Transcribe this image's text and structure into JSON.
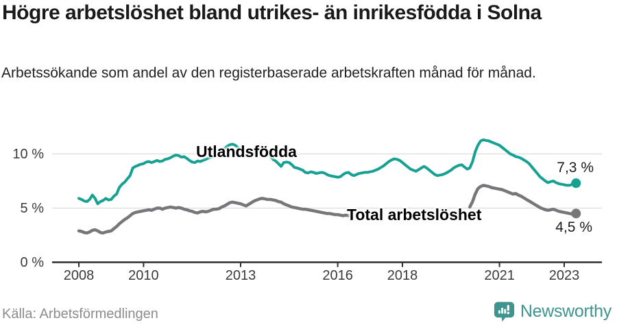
{
  "header": {
    "title": "Högre arbetslöshet bland utrikes- än inrikesfödda i Solna",
    "subtitle": "Arbetssökande som andel av den registerbaserade arbetskraften månad för månad."
  },
  "footer": {
    "source": "Källa: Arbetsförmedlingen",
    "brand": "Newsworthy"
  },
  "colors": {
    "accent_teal": "#16A193",
    "line_gray": "#76767B",
    "axis": "#2D2D2D",
    "grid": "#DCDCDC",
    "text_dark": "#1A1A1A",
    "muted_gray": "#8C8C8C",
    "brand_teal": "#3F948E"
  },
  "chart_data": {
    "type": "line",
    "x_start": "2008-01",
    "frequency": "monthly",
    "y_unit": "percent",
    "ylim": [
      0,
      12
    ],
    "grid": "horizontal",
    "legend_position": "inline-line-labels",
    "yticks": [
      {
        "value": 10,
        "label": "10 %"
      },
      {
        "value": 5,
        "label": "5 %"
      },
      {
        "value": 0,
        "label": "0 %"
      }
    ],
    "xticks": [
      {
        "year": 2008,
        "label": "2008"
      },
      {
        "year": 2010,
        "label": "2010"
      },
      {
        "year": 2013,
        "label": "2013"
      },
      {
        "year": 2016,
        "label": "2016"
      },
      {
        "year": 2018,
        "label": "2018"
      },
      {
        "year": 2021,
        "label": "2021"
      },
      {
        "year": 2023,
        "label": "2023"
      }
    ],
    "series": [
      {
        "name": "Utlandsfödda",
        "color": "#16A193",
        "end_label": "7,3 %",
        "last_value": 7.3,
        "values": [
          5.9,
          5.8,
          5.65,
          5.6,
          5.8,
          6.2,
          5.9,
          5.4,
          5.6,
          5.7,
          5.9,
          5.75,
          5.8,
          6.1,
          6.3,
          6.9,
          7.2,
          7.4,
          7.7,
          8.0,
          8.7,
          8.85,
          8.95,
          9.05,
          9.1,
          9.25,
          9.3,
          9.2,
          9.3,
          9.4,
          9.3,
          9.35,
          9.5,
          9.55,
          9.65,
          9.8,
          9.9,
          9.85,
          9.7,
          9.75,
          9.6,
          9.4,
          9.25,
          9.2,
          9.35,
          9.3,
          9.4,
          9.5,
          9.6,
          9.7,
          9.8,
          9.95,
          10.1,
          10.3,
          10.5,
          10.7,
          10.85,
          10.9,
          10.8,
          10.6,
          10.3,
          10.05,
          9.85,
          9.8,
          9.9,
          10.1,
          10.3,
          10.45,
          10.5,
          10.35,
          10.1,
          9.8,
          9.5,
          9.35,
          9.1,
          8.85,
          9.2,
          9.25,
          9.2,
          9.0,
          8.75,
          8.7,
          8.6,
          8.5,
          8.3,
          8.25,
          8.35,
          8.3,
          8.2,
          8.25,
          8.3,
          8.25,
          8.1,
          8.0,
          7.95,
          7.9,
          7.85,
          7.9,
          8.1,
          8.25,
          8.3,
          8.1,
          8.0,
          8.1,
          8.2,
          8.25,
          8.3,
          8.3,
          8.35,
          8.4,
          8.5,
          8.6,
          8.75,
          8.9,
          9.1,
          9.3,
          9.45,
          9.55,
          9.5,
          9.4,
          9.2,
          9.0,
          8.8,
          8.6,
          8.5,
          8.4,
          8.55,
          8.7,
          8.85,
          8.7,
          8.5,
          8.3,
          8.1,
          8.0,
          8.05,
          8.1,
          8.2,
          8.35,
          8.5,
          8.7,
          8.85,
          8.95,
          9.0,
          8.8,
          8.6,
          8.7,
          9.3,
          10.2,
          10.8,
          11.2,
          11.3,
          11.25,
          11.2,
          11.1,
          11.0,
          10.9,
          10.8,
          10.6,
          10.4,
          10.2,
          10.0,
          9.9,
          9.75,
          9.7,
          9.6,
          9.45,
          9.3,
          9.1,
          8.8,
          8.5,
          8.2,
          7.9,
          7.7,
          7.5,
          7.35,
          7.45,
          7.5,
          7.35,
          7.25,
          7.2,
          7.15,
          7.1,
          7.1,
          7.2,
          7.3
        ]
      },
      {
        "name": "Total arbetslöshet",
        "color": "#76767B",
        "end_label": "4,5 %",
        "last_value": 4.5,
        "values": [
          2.9,
          2.85,
          2.75,
          2.7,
          2.8,
          2.95,
          3.0,
          2.9,
          2.75,
          2.7,
          2.8,
          2.85,
          2.9,
          3.1,
          3.3,
          3.55,
          3.75,
          3.95,
          4.1,
          4.3,
          4.5,
          4.6,
          4.65,
          4.7,
          4.75,
          4.8,
          4.85,
          4.8,
          4.9,
          5.0,
          5.0,
          4.9,
          5.0,
          5.05,
          5.1,
          5.05,
          5.0,
          5.05,
          5.0,
          4.9,
          4.85,
          4.75,
          4.7,
          4.6,
          4.55,
          4.65,
          4.7,
          4.65,
          4.7,
          4.8,
          4.9,
          4.9,
          4.95,
          5.1,
          5.2,
          5.35,
          5.5,
          5.55,
          5.5,
          5.45,
          5.4,
          5.3,
          5.2,
          5.35,
          5.5,
          5.65,
          5.75,
          5.85,
          5.9,
          5.85,
          5.8,
          5.8,
          5.75,
          5.7,
          5.6,
          5.55,
          5.4,
          5.3,
          5.2,
          5.1,
          5.05,
          5.0,
          4.95,
          4.9,
          4.9,
          4.85,
          4.8,
          4.75,
          4.7,
          4.65,
          4.6,
          4.55,
          4.5,
          4.5,
          4.45,
          4.4,
          4.4,
          4.35,
          4.3,
          4.35,
          4.3,
          4.3,
          null,
          null,
          null,
          null,
          null,
          null,
          null,
          null,
          null,
          null,
          null,
          null,
          null,
          null,
          null,
          null,
          null,
          null,
          null,
          null,
          null,
          null,
          null,
          null,
          null,
          null,
          null,
          null,
          null,
          null,
          null,
          null,
          null,
          null,
          null,
          null,
          null,
          null,
          null,
          null,
          null,
          null,
          null,
          5.1,
          5.6,
          6.3,
          6.8,
          7.0,
          7.1,
          7.05,
          7.0,
          6.9,
          6.85,
          6.8,
          6.75,
          6.7,
          6.6,
          6.5,
          6.4,
          6.3,
          6.35,
          6.2,
          6.1,
          5.95,
          5.8,
          5.65,
          5.5,
          5.35,
          5.2,
          5.05,
          4.95,
          4.85,
          4.8,
          4.85,
          4.9,
          4.8,
          4.7,
          4.65,
          4.6,
          4.55,
          4.5,
          4.45,
          4.5
        ]
      }
    ]
  }
}
